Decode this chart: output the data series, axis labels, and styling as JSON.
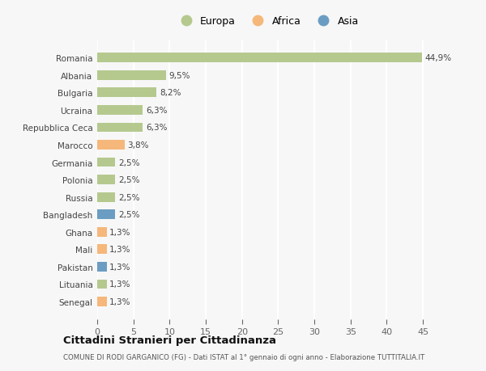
{
  "countries": [
    "Romania",
    "Albania",
    "Bulgaria",
    "Ucraina",
    "Repubblica Ceca",
    "Marocco",
    "Germania",
    "Polonia",
    "Russia",
    "Bangladesh",
    "Ghana",
    "Mali",
    "Pakistan",
    "Lituania",
    "Senegal"
  ],
  "values": [
    44.9,
    9.5,
    8.2,
    6.3,
    6.3,
    3.8,
    2.5,
    2.5,
    2.5,
    2.5,
    1.3,
    1.3,
    1.3,
    1.3,
    1.3
  ],
  "labels": [
    "44,9%",
    "9,5%",
    "8,2%",
    "6,3%",
    "6,3%",
    "3,8%",
    "2,5%",
    "2,5%",
    "2,5%",
    "2,5%",
    "1,3%",
    "1,3%",
    "1,3%",
    "1,3%",
    "1,3%"
  ],
  "continent": [
    "Europa",
    "Europa",
    "Europa",
    "Europa",
    "Europa",
    "Africa",
    "Europa",
    "Europa",
    "Europa",
    "Asia",
    "Africa",
    "Africa",
    "Asia",
    "Europa",
    "Africa"
  ],
  "colors": {
    "Europa": "#b5c98e",
    "Africa": "#f5b87a",
    "Asia": "#6b9dc2"
  },
  "xlim": [
    0,
    47
  ],
  "xticks": [
    0,
    5,
    10,
    15,
    20,
    25,
    30,
    35,
    40,
    45
  ],
  "title": "Cittadini Stranieri per Cittadinanza",
  "subtitle": "COMUNE DI RODI GARGANICO (FG) - Dati ISTAT al 1° gennaio di ogni anno - Elaborazione TUTTITALIA.IT",
  "bg_color": "#f7f7f7",
  "grid_color": "#ffffff",
  "bar_height": 0.55,
  "label_fontsize": 7.5,
  "ytick_fontsize": 7.5,
  "xtick_fontsize": 8
}
